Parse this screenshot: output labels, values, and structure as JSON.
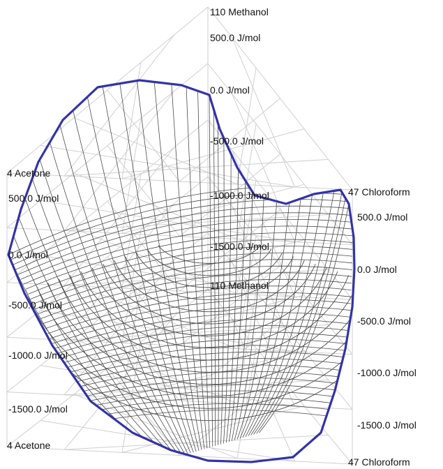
{
  "axes": {
    "back": {
      "component": "110 Methanol",
      "ticks": [
        "500.0 J/mol",
        "0.0 J/mol",
        "-500.0 J/mol",
        "-1000.0 J/mol",
        "-1500.0 J/mol"
      ],
      "base_component": "110 Methanol"
    },
    "left": {
      "component_top": "4 Acetone",
      "ticks": [
        "500.0 J/mol",
        "0.0 J/mol",
        "-500.0 J/mol",
        "-1000.0 J/mol",
        "-1500.0 J/mol"
      ],
      "component_bottom": "4 Acetone"
    },
    "right": {
      "component_top": "47 Chloroform",
      "ticks": [
        "500.0 J/mol",
        "0.0 J/mol",
        "-500.0 J/mol",
        "-1000.0 J/mol",
        "-1500.0 J/mol"
      ],
      "component_bottom": "47 Chloroform"
    }
  },
  "colors": {
    "surface_edge": "#3333aa",
    "surface_mesh": "#4a4a4a",
    "grid": "#cfcfcf",
    "label": "#111111"
  }
}
